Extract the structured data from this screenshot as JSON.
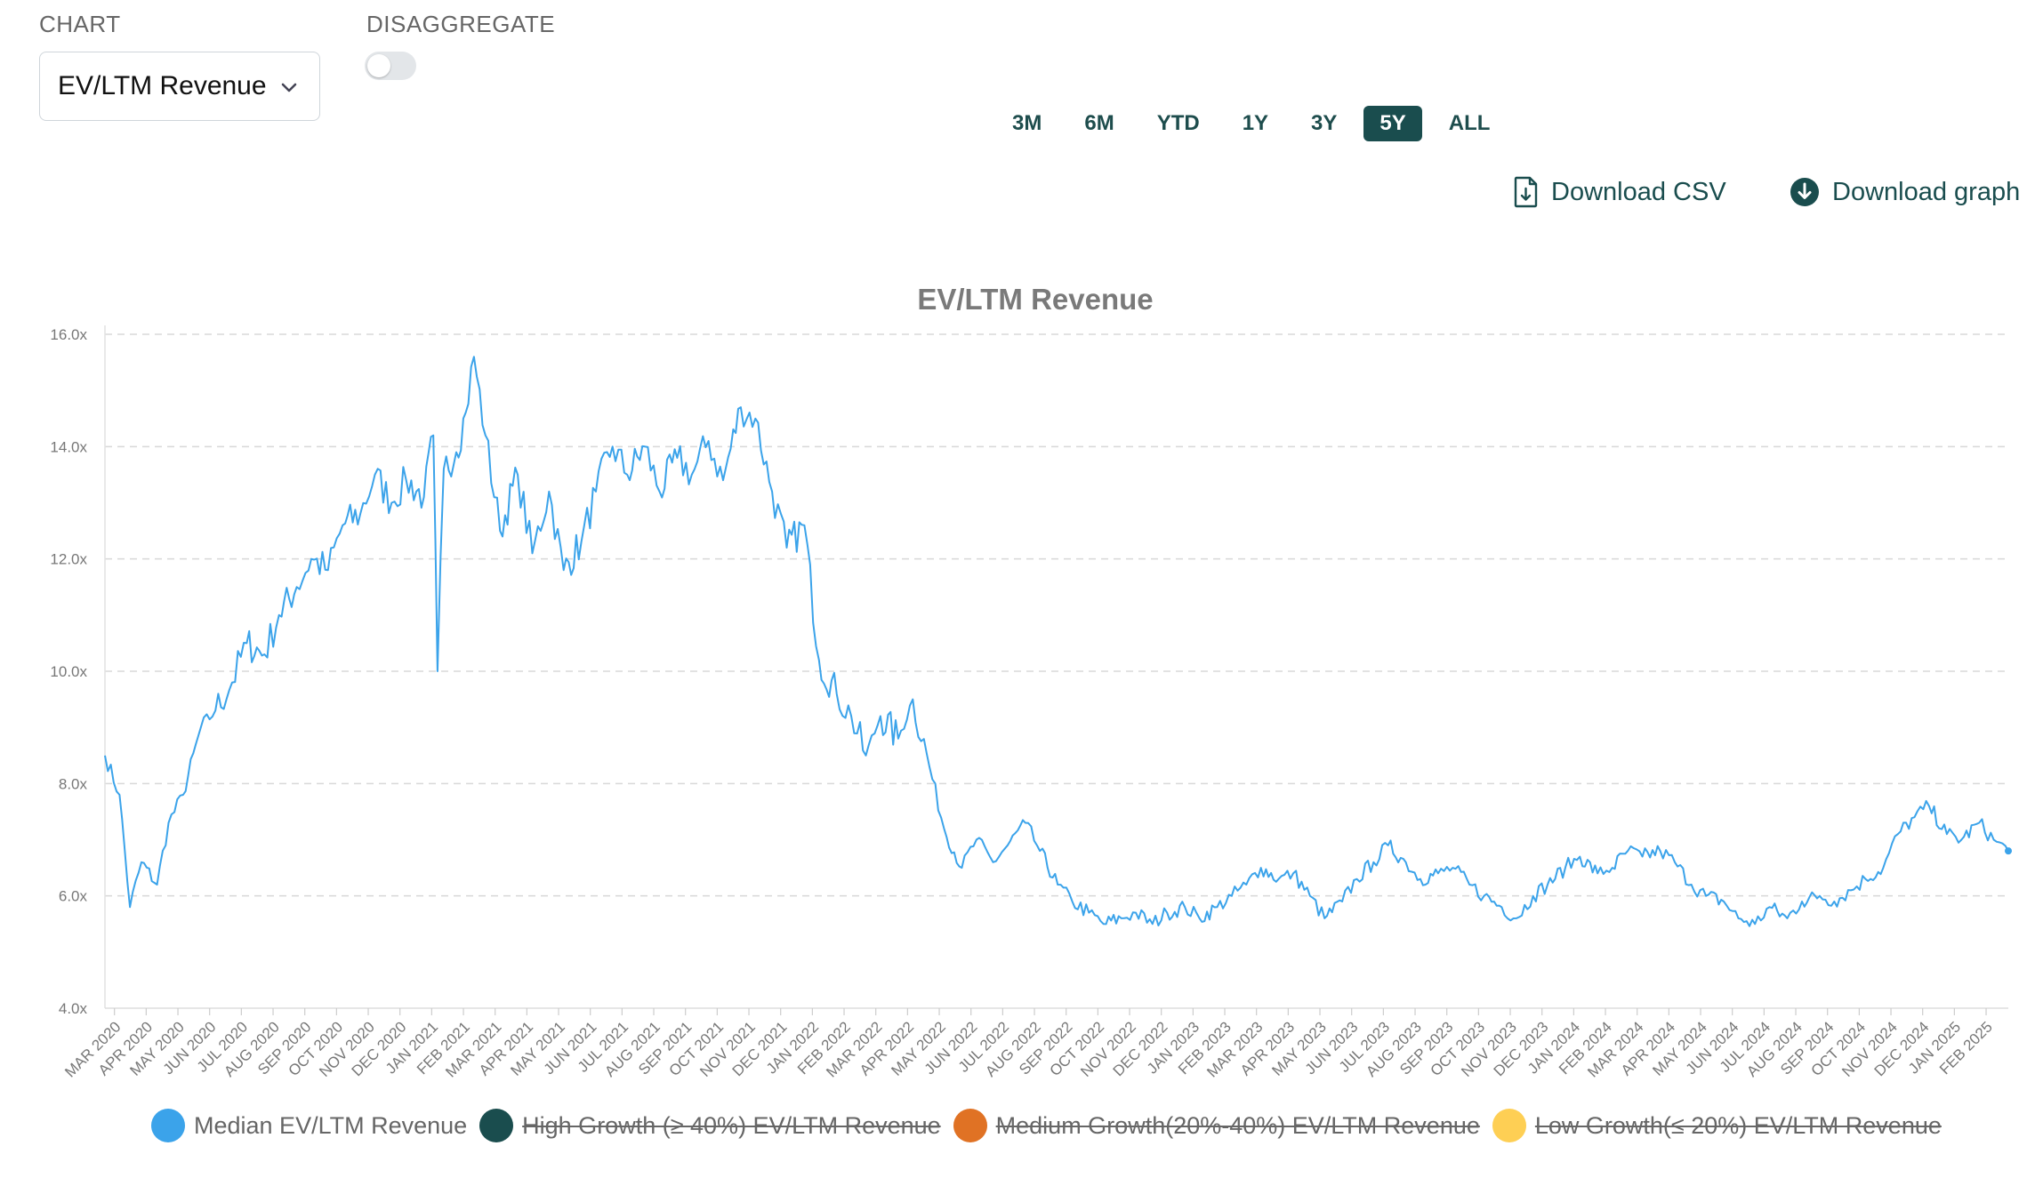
{
  "controls": {
    "chart_label": "CHART",
    "chart_select_value": "EV/LTM Revenue",
    "disaggregate_label": "DISAGGREGATE",
    "disaggregate_on": false
  },
  "ranges": [
    "3M",
    "6M",
    "YTD",
    "1Y",
    "3Y",
    "5Y",
    "ALL"
  ],
  "active_range": "5Y",
  "downloads": {
    "csv": "Download CSV",
    "graph": "Download graph"
  },
  "colors": {
    "accent": "#1a4d4e",
    "series_median": "#3ba3ea",
    "series_high": "#1a4d4e",
    "series_medium": "#e07224",
    "series_low": "#fecf54"
  },
  "chart_data": {
    "type": "line",
    "title": "EV/LTM Revenue",
    "xlabel": "",
    "ylabel": "",
    "ylim": [
      4,
      16
    ],
    "yticks": [
      "4.0x",
      "6.0x",
      "8.0x",
      "10.0x",
      "12.0x",
      "14.0x",
      "16.0x"
    ],
    "grid": true,
    "legend_position": "bottom",
    "x_tick_labels": [
      "MAR 2020",
      "APR 2020",
      "MAY 2020",
      "JUN 2020",
      "JUL 2020",
      "AUG 2020",
      "SEP 2020",
      "OCT 2020",
      "NOV 2020",
      "DEC 2020",
      "JAN 2021",
      "FEB 2021",
      "MAR 2021",
      "APR 2021",
      "MAY 2021",
      "JUN 2021",
      "JUL 2021",
      "AUG 2021",
      "SEP 2021",
      "OCT 2021",
      "NOV 2021",
      "DEC 2021",
      "JAN 2022",
      "FEB 2022",
      "MAR 2022",
      "APR 2022",
      "MAY 2022",
      "JUN 2022",
      "JUL 2022",
      "AUG 2022",
      "SEP 2022",
      "OCT 2022",
      "NOV 2022",
      "DEC 2022",
      "JAN 2023",
      "FEB 2023",
      "MAR 2023",
      "APR 2023",
      "MAY 2023",
      "JUN 2023",
      "JUL 2023",
      "AUG 2023",
      "SEP 2023",
      "OCT 2023",
      "NOV 2023",
      "DEC 2023",
      "JAN 2024",
      "FEB 2024",
      "MAR 2024",
      "APR 2024",
      "MAY 2024",
      "JUN 2024",
      "JUL 2024",
      "AUG 2024",
      "SEP 2024",
      "OCT 2024",
      "NOV 2024",
      "DEC 2024",
      "JAN 2025",
      "FEB 2025"
    ],
    "series": [
      {
        "name": "Median EV/LTM Revenue",
        "color": "#3ba3ea",
        "visible": true,
        "x": [
          "2020-03-01",
          "2020-03-15",
          "2020-03-25",
          "2020-04-05",
          "2020-04-20",
          "2020-05-01",
          "2020-05-15",
          "2020-06-01",
          "2020-06-15",
          "2020-07-01",
          "2020-07-15",
          "2020-08-01",
          "2020-08-15",
          "2020-09-01",
          "2020-09-15",
          "2020-10-01",
          "2020-10-15",
          "2020-11-01",
          "2020-11-15",
          "2020-12-01",
          "2020-12-15",
          "2021-01-01",
          "2021-01-10",
          "2021-01-14",
          "2021-01-20",
          "2021-02-01",
          "2021-02-10",
          "2021-02-18",
          "2021-03-01",
          "2021-03-15",
          "2021-04-01",
          "2021-04-15",
          "2021-05-01",
          "2021-05-15",
          "2021-06-01",
          "2021-06-15",
          "2021-07-01",
          "2021-07-15",
          "2021-08-01",
          "2021-08-15",
          "2021-09-01",
          "2021-09-15",
          "2021-10-01",
          "2021-10-15",
          "2021-11-01",
          "2021-11-15",
          "2021-12-01",
          "2021-12-15",
          "2022-01-01",
          "2022-01-15",
          "2022-02-01",
          "2022-02-15",
          "2022-03-01",
          "2022-03-15",
          "2022-04-01",
          "2022-04-15",
          "2022-05-01",
          "2022-05-15",
          "2022-06-01",
          "2022-06-15",
          "2022-07-01",
          "2022-07-15",
          "2022-08-01",
          "2022-08-15",
          "2022-09-01",
          "2022-09-15",
          "2022-10-01",
          "2022-10-15",
          "2022-11-01",
          "2022-11-15",
          "2022-12-01",
          "2022-12-15",
          "2023-01-01",
          "2023-01-15",
          "2023-02-01",
          "2023-02-15",
          "2023-03-01",
          "2023-03-15",
          "2023-04-01",
          "2023-04-15",
          "2023-05-01",
          "2023-05-15",
          "2023-06-01",
          "2023-06-15",
          "2023-07-01",
          "2023-07-15",
          "2023-08-01",
          "2023-08-15",
          "2023-09-01",
          "2023-09-15",
          "2023-10-01",
          "2023-10-15",
          "2023-11-01",
          "2023-11-15",
          "2023-12-01",
          "2023-12-15",
          "2024-01-01",
          "2024-01-15",
          "2024-02-01",
          "2024-02-15",
          "2024-03-01",
          "2024-03-15",
          "2024-04-01",
          "2024-04-15",
          "2024-05-01",
          "2024-05-15",
          "2024-06-01",
          "2024-06-15",
          "2024-07-01",
          "2024-07-15",
          "2024-08-01",
          "2024-08-15",
          "2024-09-01",
          "2024-09-15",
          "2024-10-01",
          "2024-10-15",
          "2024-11-01",
          "2024-11-15",
          "2024-12-01",
          "2024-12-15",
          "2025-01-01",
          "2025-01-15",
          "2025-02-01",
          "2025-02-15",
          "2025-03-01"
        ],
        "values": [
          8.5,
          7.8,
          5.8,
          6.6,
          6.2,
          7.3,
          7.8,
          9.0,
          9.3,
          9.8,
          10.5,
          10.3,
          11.0,
          11.5,
          12.0,
          11.8,
          12.6,
          12.8,
          13.5,
          13.0,
          13.4,
          13.1,
          14.2,
          10.0,
          13.6,
          13.9,
          14.6,
          15.6,
          14.2,
          12.5,
          13.5,
          12.1,
          13.2,
          11.8,
          12.3,
          13.2,
          14.0,
          13.5,
          14.0,
          13.2,
          13.8,
          13.5,
          14.1,
          13.4,
          14.7,
          14.5,
          13.2,
          12.2,
          12.6,
          10.2,
          9.6,
          9.2,
          8.5,
          9.2,
          8.8,
          9.5,
          8.3,
          7.2,
          6.5,
          7.0,
          6.6,
          6.9,
          7.3,
          6.8,
          6.2,
          5.9,
          5.7,
          5.5,
          5.6,
          5.7,
          5.5,
          5.7,
          5.8,
          5.6,
          5.8,
          6.0,
          6.2,
          6.5,
          6.3,
          6.4,
          6.0,
          5.6,
          5.9,
          6.3,
          6.6,
          6.9,
          6.6,
          6.3,
          6.4,
          6.5,
          6.2,
          6.0,
          5.8,
          5.6,
          6.0,
          6.2,
          6.5,
          6.7,
          6.4,
          6.5,
          6.8,
          6.7,
          6.8,
          6.6,
          6.2,
          6.0,
          5.9,
          5.6,
          5.5,
          5.8,
          5.6,
          5.9,
          6.0,
          5.9,
          6.1,
          6.3,
          6.5,
          7.1,
          7.4,
          7.6,
          7.1,
          7.0,
          7.3,
          7.0,
          6.8
        ]
      },
      {
        "name": "High Growth (≥ 40%) EV/LTM Revenue",
        "color": "#1a4d4e",
        "visible": false
      },
      {
        "name": "Medium Growth(20%-40%) EV/LTM Revenue",
        "color": "#e07224",
        "visible": false
      },
      {
        "name": "Low Growth(≤ 20%) EV/LTM Revenue",
        "color": "#fecf54",
        "visible": false
      }
    ]
  }
}
